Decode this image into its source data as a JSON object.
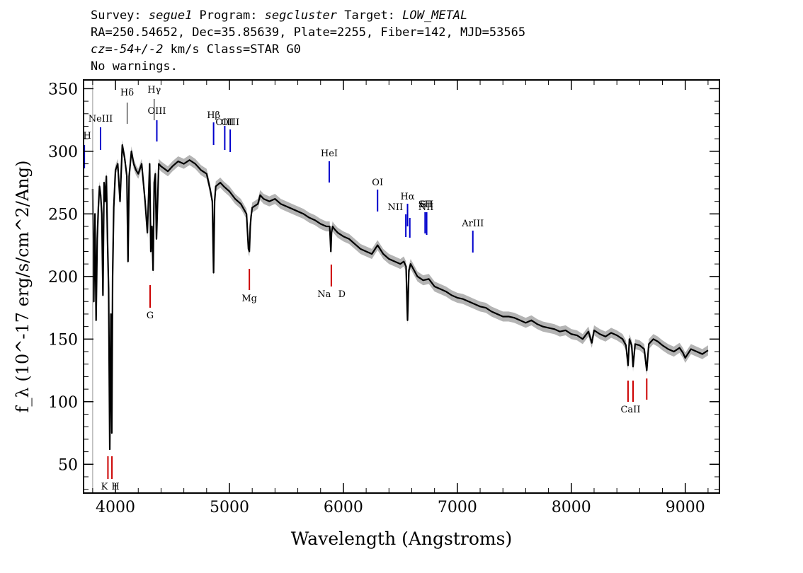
{
  "header": {
    "line1": {
      "survey_label": "Survey: ",
      "survey": "segue1",
      "program_label": " Program: ",
      "program": "segcluster",
      "target_label": " Target: ",
      "target": "LOW_METAL"
    },
    "line2": "RA=250.54652, Dec=35.85639, Plate=2255, Fiber=142, MJD=53565",
    "line3": {
      "cz_label": "cz",
      "cz_value": "=-54+/-2",
      "rest": " km/s Class=STAR G0"
    },
    "line4": "No warnings."
  },
  "chart_data": {
    "type": "line",
    "title": "",
    "xlabel": "Wavelength (Angstroms)",
    "ylabel": "f_λ (10^-17 erg/s/cm^2/Ang)",
    "xlim": [
      3720,
      9300
    ],
    "ylim": [
      27,
      357
    ],
    "xticks": [
      4000,
      5000,
      6000,
      7000,
      8000,
      9000
    ],
    "yticks": [
      50,
      100,
      150,
      200,
      250,
      300,
      350
    ],
    "grid": false,
    "legend": "none",
    "colors": {
      "flux": "#000000",
      "error_band": "#b4b4b4",
      "emission": "#0000cc",
      "absorption": "#cc0000",
      "ref_line": "#999999"
    },
    "series": [
      {
        "x": [
          3800,
          3810,
          3820,
          3830,
          3840,
          3850,
          3860,
          3870,
          3880,
          3890,
          3900,
          3910,
          3920,
          3930,
          3940,
          3950,
          3960,
          3968,
          3975,
          3985,
          4000,
          4020,
          4040,
          4060,
          4080,
          4100,
          4110,
          4120,
          4140,
          4160,
          4180,
          4200,
          4230,
          4260,
          4280,
          4300,
          4310,
          4320,
          4330,
          4340,
          4350,
          4360,
          4380,
          4400,
          4430,
          4460,
          4500,
          4550,
          4600,
          4650,
          4700,
          4750,
          4800,
          4830,
          4850,
          4861,
          4870,
          4880,
          4920,
          4950,
          5000,
          5050,
          5100,
          5150,
          5167,
          5175,
          5183,
          5190,
          5200,
          5250,
          5270,
          5300,
          5350,
          5400,
          5450,
          5500,
          5550,
          5600,
          5650,
          5700,
          5750,
          5800,
          5850,
          5880,
          5890,
          5896,
          5905,
          5920,
          5950,
          6000,
          6050,
          6100,
          6150,
          6200,
          6250,
          6300,
          6350,
          6400,
          6450,
          6500,
          6530,
          6550,
          6563,
          6575,
          6590,
          6620,
          6650,
          6700,
          6750,
          6800,
          6850,
          6900,
          6950,
          7000,
          7050,
          7100,
          7150,
          7200,
          7250,
          7300,
          7350,
          7400,
          7450,
          7500,
          7550,
          7600,
          7650,
          7700,
          7750,
          7800,
          7850,
          7900,
          7950,
          8000,
          8050,
          8100,
          8150,
          8180,
          8200,
          8250,
          8300,
          8350,
          8400,
          8450,
          8480,
          8498,
          8510,
          8530,
          8542,
          8560,
          8600,
          8640,
          8662,
          8680,
          8720,
          8760,
          8800,
          8850,
          8900,
          8950,
          8980,
          9000,
          9050,
          9100,
          9150,
          9200
        ],
        "y": [
          270,
          180,
          250,
          165,
          230,
          255,
          272,
          265,
          250,
          185,
          275,
          260,
          280,
          230,
          190,
          62,
          170,
          75,
          200,
          255,
          285,
          290,
          260,
          305,
          295,
          280,
          212,
          280,
          300,
          290,
          285,
          282,
          290,
          260,
          235,
          290,
          220,
          240,
          205,
          275,
          282,
          230,
          290,
          288,
          286,
          284,
          288,
          292,
          290,
          293,
          290,
          285,
          282,
          270,
          260,
          203,
          260,
          272,
          275,
          272,
          268,
          262,
          258,
          250,
          222,
          220,
          240,
          248,
          255,
          258,
          265,
          262,
          260,
          262,
          258,
          256,
          254,
          252,
          250,
          247,
          245,
          242,
          240,
          240,
          220,
          235,
          240,
          238,
          235,
          232,
          230,
          226,
          222,
          220,
          218,
          225,
          218,
          214,
          212,
          210,
          212,
          208,
          165,
          205,
          210,
          205,
          200,
          197,
          198,
          192,
          190,
          188,
          185,
          183,
          182,
          180,
          178,
          176,
          175,
          172,
          170,
          168,
          168,
          167,
          165,
          163,
          165,
          162,
          160,
          159,
          158,
          156,
          157,
          154,
          153,
          150,
          156,
          147,
          157,
          154,
          152,
          155,
          153,
          150,
          145,
          129,
          150,
          145,
          128,
          146,
          145,
          142,
          125,
          146,
          150,
          148,
          145,
          142,
          140,
          143,
          139,
          135,
          142,
          140,
          138,
          141
        ]
      }
    ],
    "lines": {
      "emission": [
        {
          "label": "H",
          "wl": 3727
        },
        {
          "label": "NeIII",
          "wl": 3869
        },
        {
          "label": "Hδ",
          "wl": 4102
        },
        {
          "label": "Hγ",
          "wl": 4340
        },
        {
          "label": "OIII",
          "wl": 4363
        },
        {
          "label": "Hβ",
          "wl": 4861
        },
        {
          "label": "OIII",
          "wl": 4959
        },
        {
          "label": "OIII",
          "wl": 5007
        },
        {
          "label": "HeI",
          "wl": 5876
        },
        {
          "label": "OI",
          "wl": 6300
        },
        {
          "label": "NII",
          "wl": 6548
        },
        {
          "label": "Hα",
          "wl": 6563
        },
        {
          "label": "NII",
          "wl": 6583
        },
        {
          "label": "SII",
          "wl": 6717
        },
        {
          "label": "SII",
          "wl": 6731
        },
        {
          "label": "ArIII",
          "wl": 7136
        }
      ],
      "absorption": [
        {
          "label": "K",
          "wl": 3934
        },
        {
          "label": "H",
          "wl": 3969
        },
        {
          "label": "G",
          "wl": 4304
        },
        {
          "label": "Mg",
          "wl": 5175
        },
        {
          "label": "Na",
          "wl": 5894
        },
        {
          "label": "D",
          "wl": 5894
        },
        {
          "label": "CaII",
          "wl": 8498
        },
        {
          "label": "CaII",
          "wl": 8542
        },
        {
          "label": "CaII",
          "wl": 8662
        }
      ]
    }
  }
}
